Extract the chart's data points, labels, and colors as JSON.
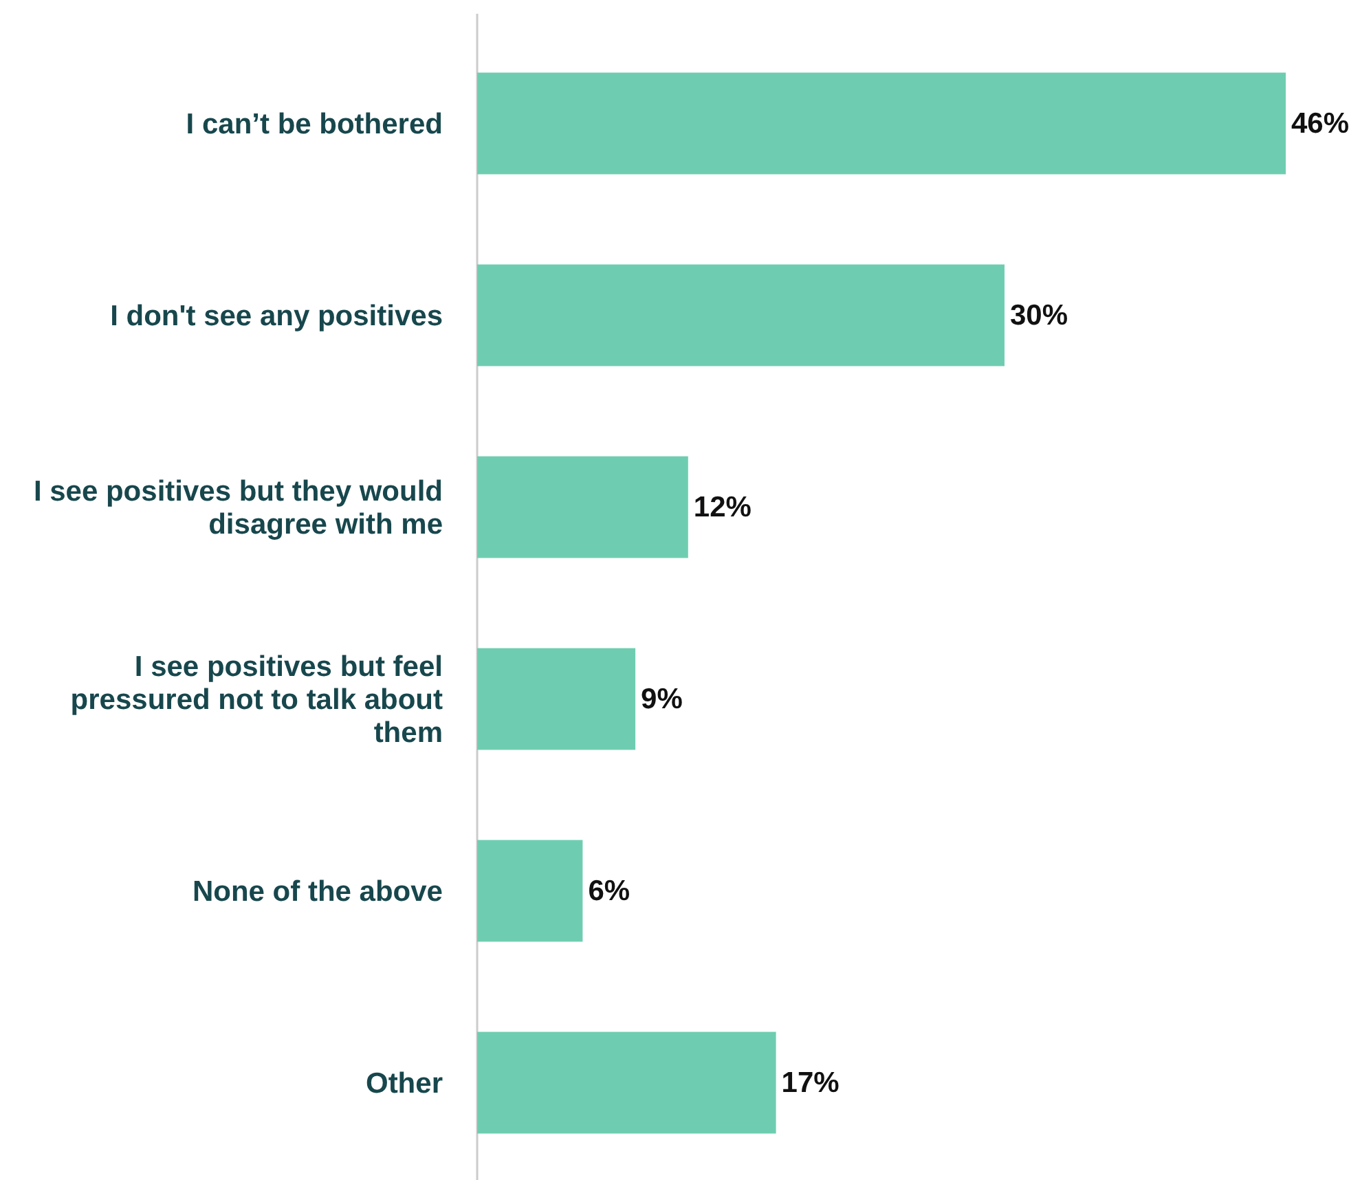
{
  "chart_data": {
    "type": "bar",
    "orientation": "horizontal",
    "categories": [
      "I can’t be bothered",
      "I don't see any positives",
      "I see positives but they would disagree with me",
      "I see positives but feel pressured not to talk about them",
      "None of the above",
      "Other"
    ],
    "values": [
      46,
      30,
      12,
      9,
      6,
      17
    ],
    "value_labels": [
      "46%",
      "30%",
      "12%",
      "9%",
      "6%",
      "17%"
    ],
    "color": "#6ecdb0"
  }
}
